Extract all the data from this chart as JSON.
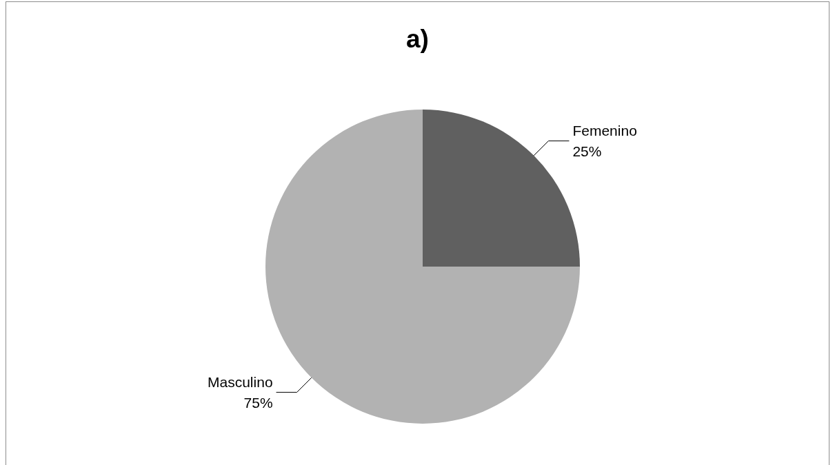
{
  "chart_data": {
    "type": "pie",
    "title": "a)",
    "categories": [
      "Femenino",
      "Masculino"
    ],
    "values": [
      25,
      75
    ],
    "colors": [
      "#606060",
      "#b2b2b2"
    ],
    "value_labels": [
      "25%",
      "75%"
    ],
    "legend": false
  }
}
